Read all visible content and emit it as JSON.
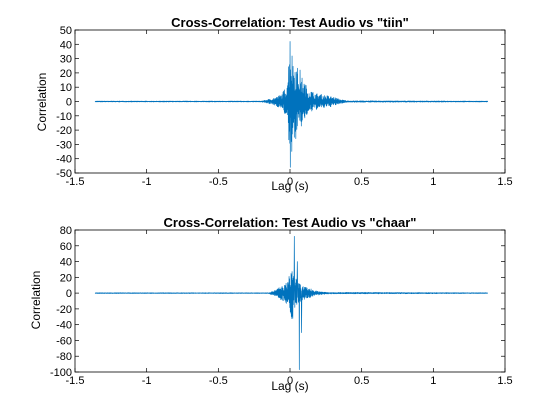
{
  "chart_data": [
    {
      "type": "line",
      "title": "Cross-Correlation: Test Audio vs \"tiin\"",
      "xlabel": "Lag (s)",
      "ylabel": "Correlation",
      "xlim": [
        -1.5,
        1.5
      ],
      "ylim": [
        -50,
        50
      ],
      "xticks": [
        -1.5,
        -1,
        -0.5,
        0,
        0.5,
        1,
        1.5
      ],
      "xtick_labels": [
        "-1.5",
        "-1",
        "-0.5",
        "0",
        "0.5",
        "1",
        "1.5"
      ],
      "yticks": [
        -50,
        -40,
        -30,
        -20,
        -10,
        0,
        10,
        20,
        30,
        40,
        50
      ],
      "ytick_labels": [
        "-50",
        "-40",
        "-30",
        "-20",
        "-10",
        "0",
        "10",
        "20",
        "30",
        "40",
        "50"
      ],
      "grid": false,
      "series": [
        {
          "color": "#0072bd",
          "x_range": [
            -1.36,
            1.38
          ],
          "baseline": 0,
          "envelope": [
            [
              -1.36,
              0.3
            ],
            [
              -0.2,
              0.3
            ],
            [
              -0.15,
              1.5
            ],
            [
              -0.1,
              3
            ],
            [
              -0.06,
              5
            ],
            [
              -0.03,
              10
            ],
            [
              -0.015,
              22
            ],
            [
              0.0,
              42
            ],
            [
              0.02,
              32
            ],
            [
              0.05,
              25
            ],
            [
              0.08,
              18
            ],
            [
              0.12,
              10
            ],
            [
              0.17,
              6
            ],
            [
              0.22,
              5
            ],
            [
              0.27,
              4
            ],
            [
              0.31,
              3
            ],
            [
              0.35,
              1.5
            ],
            [
              0.4,
              0.5
            ],
            [
              1.38,
              0.3
            ]
          ],
          "peaks": [
            [
              0.0,
              42
            ],
            [
              0.002,
              -46
            ],
            [
              0.03,
              -25
            ],
            [
              0.07,
              22
            ]
          ]
        }
      ]
    },
    {
      "type": "line",
      "title": "Cross-Correlation: Test Audio vs \"chaar\"",
      "xlabel": "Lag (s)",
      "ylabel": "Correlation",
      "xlim": [
        -1.5,
        1.5
      ],
      "ylim": [
        -100,
        80
      ],
      "xticks": [
        -1.5,
        -1,
        -0.5,
        0,
        0.5,
        1,
        1.5
      ],
      "xtick_labels": [
        "-1.5",
        "-1",
        "-0.5",
        "0",
        "0.5",
        "1",
        "1.5"
      ],
      "yticks": [
        -100,
        -80,
        -60,
        -40,
        -20,
        0,
        20,
        40,
        60,
        80
      ],
      "ytick_labels": [
        "-100",
        "-80",
        "-60",
        "-40",
        "-20",
        "0",
        "20",
        "40",
        "60",
        "80"
      ],
      "grid": false,
      "series": [
        {
          "color": "#0072bd",
          "x_range": [
            -1.36,
            1.38
          ],
          "baseline": 0,
          "envelope": [
            [
              -1.36,
              0.5
            ],
            [
              -0.15,
              0.5
            ],
            [
              -0.1,
              4
            ],
            [
              -0.07,
              8
            ],
            [
              -0.04,
              10
            ],
            [
              -0.02,
              15
            ],
            [
              0.0,
              25
            ],
            [
              0.015,
              35
            ],
            [
              0.04,
              20
            ],
            [
              0.07,
              12
            ],
            [
              0.1,
              8
            ],
            [
              0.14,
              6
            ],
            [
              0.18,
              3
            ],
            [
              0.22,
              2
            ],
            [
              0.26,
              1
            ],
            [
              1.38,
              0.5
            ]
          ],
          "peaks": [
            [
              0.03,
              72
            ],
            [
              0.065,
              -97
            ],
            [
              0.05,
              40
            ],
            [
              0.08,
              -50
            ]
          ]
        }
      ]
    }
  ]
}
